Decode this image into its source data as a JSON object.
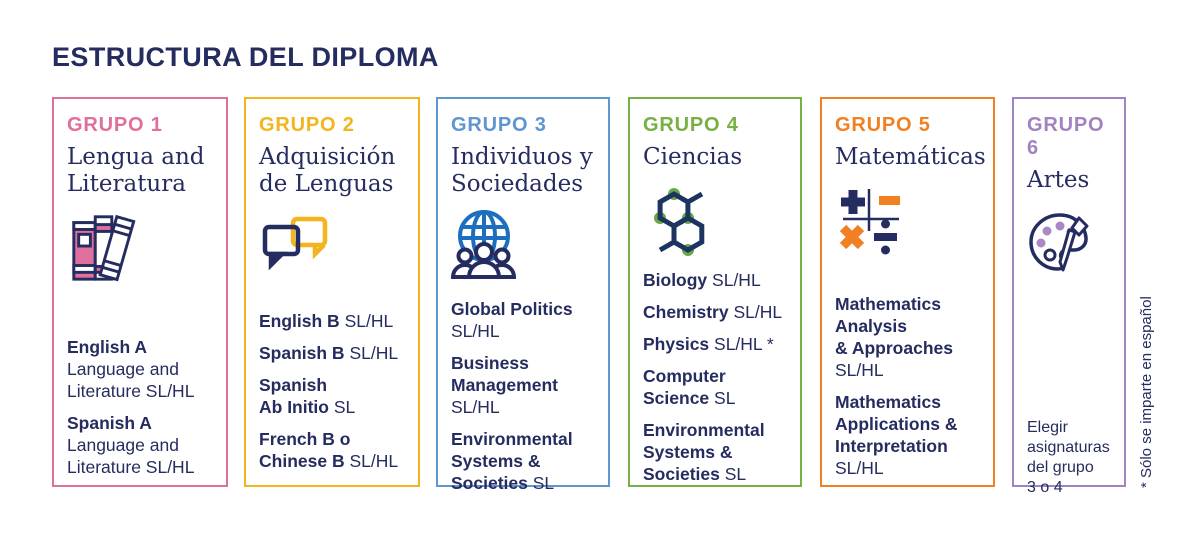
{
  "title": "ESTRUCTURA DEL DIPLOMA",
  "footnote": "* Sólo se imparte en español",
  "text_color": "#252c5f",
  "groups": [
    {
      "label": "GRUPO 1",
      "color": "#df6f9d",
      "name": "Lengua and Literatura",
      "icon": "books-icon",
      "courses": [
        [
          {
            "b": "English A"
          },
          {
            "r": "Language and"
          },
          {
            "r": "Literature SL/HL"
          }
        ],
        [
          {
            "b": "Spanish A"
          },
          {
            "r": "Language and"
          },
          {
            "r": "Literature SL/HL"
          }
        ]
      ]
    },
    {
      "label": "GRUPO 2",
      "color": "#f2b51d",
      "name": "Adquisición de Lenguas",
      "icon": "speech-bubbles-icon",
      "courses": [
        [
          {
            "b": "English B",
            "r": " SL/HL"
          }
        ],
        [
          {
            "b": "Spanish B",
            "r": " SL/HL"
          }
        ],
        [
          {
            "b": "Spanish"
          },
          {
            "b": "Ab Initio",
            "r": " SL"
          }
        ],
        [
          {
            "b": "French B o"
          },
          {
            "b": "Chinese B",
            "r": " SL/HL"
          }
        ]
      ]
    },
    {
      "label": "GRUPO 3",
      "color": "#5e96cf",
      "name": "Individuos y Sociedades",
      "icon": "globe-people-icon",
      "courses": [
        [
          {
            "b": "Global Politics"
          },
          {
            "r": "SL/HL"
          }
        ],
        [
          {
            "b": "Business"
          },
          {
            "b": "Management"
          },
          {
            "r": "SL/HL"
          }
        ],
        [
          {
            "b": "Environmental"
          },
          {
            "b": "Systems &"
          },
          {
            "b": "Societies",
            "r": " SL"
          }
        ]
      ]
    },
    {
      "label": "GRUPO 4",
      "color": "#77b144",
      "name": "Ciencias",
      "icon": "molecule-icon",
      "courses": [
        [
          {
            "b": "Biology",
            "r": " SL/HL"
          }
        ],
        [
          {
            "b": "Chemistry",
            "r": " SL/HL"
          }
        ],
        [
          {
            "b": "Physics",
            "r": " SL/HL *"
          }
        ],
        [
          {
            "b": "Computer"
          },
          {
            "b": "Science",
            "r": " SL"
          }
        ],
        [
          {
            "b": "Environmental"
          },
          {
            "b": "Systems &"
          },
          {
            "b": "Societies",
            "r": " SL"
          }
        ]
      ]
    },
    {
      "label": "GRUPO 5",
      "color": "#f08021",
      "name": "Matemáticas",
      "icon": "math-symbols-icon",
      "courses": [
        [
          {
            "b": "Mathematics"
          },
          {
            "b": "Analysis"
          },
          {
            "b": "& Approaches"
          },
          {
            "r": "SL/HL"
          }
        ],
        [
          {
            "b": "Mathematics"
          },
          {
            "b": "Applications &"
          },
          {
            "b": "Interpretation"
          },
          {
            "r": "SL/HL"
          }
        ]
      ]
    },
    {
      "label": "GRUPO 6",
      "color": "#a283c1",
      "name": "Artes",
      "icon": "palette-icon",
      "courses": [
        [
          {
            "r": "Elegir"
          },
          {
            "r": "asignaturas"
          },
          {
            "r": "del grupo"
          },
          {
            "r": "3 o 4"
          }
        ]
      ]
    }
  ]
}
